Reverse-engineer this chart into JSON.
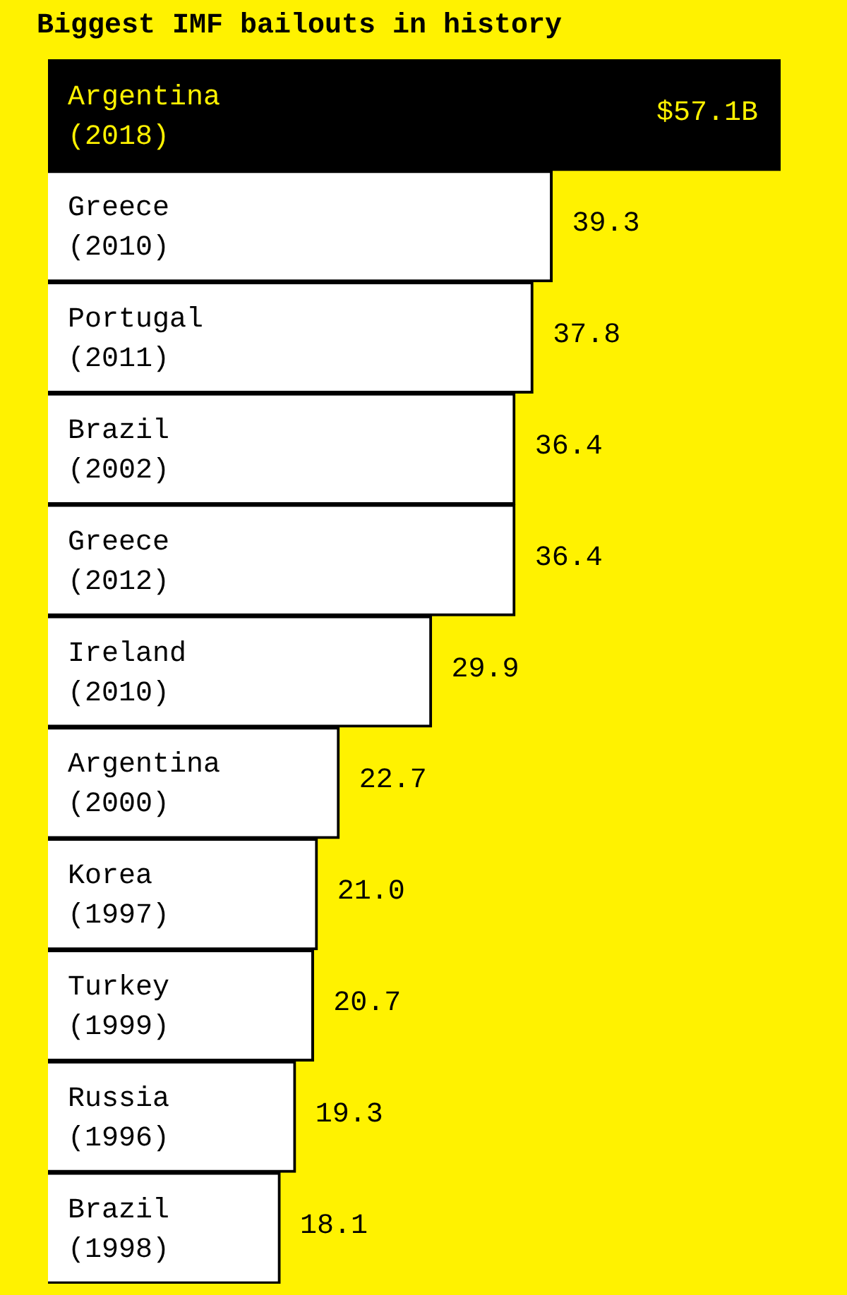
{
  "chart_data": {
    "type": "bar",
    "orientation": "horizontal",
    "title": "Biggest IMF bailouts in history",
    "categories": [
      "Argentina (2018)",
      "Greece (2010)",
      "Portugal (2011)",
      "Brazil (2002)",
      "Greece (2012)",
      "Ireland (2010)",
      "Argentina (2000)",
      "Korea (1997)",
      "Turkey (1999)",
      "Russia (1996)",
      "Brazil (1998)"
    ],
    "values": [
      57.1,
      39.3,
      37.8,
      36.4,
      36.4,
      29.9,
      22.7,
      21.0,
      20.7,
      19.3,
      18.1
    ],
    "colors": [
      "#000000",
      "#ffffff",
      "#ffffff",
      "#ffffff",
      "#ffffff",
      "#ffffff",
      "#ffffff",
      "#ffffff",
      "#ffffff",
      "#ffffff",
      "#ffffff"
    ],
    "value_labels": [
      "$57.1B",
      "39.3",
      "37.8",
      "36.4",
      "36.4",
      "29.9",
      "22.7",
      "21.0",
      "20.7",
      "19.3",
      "18.1"
    ],
    "grid": false,
    "legend": false
  }
}
